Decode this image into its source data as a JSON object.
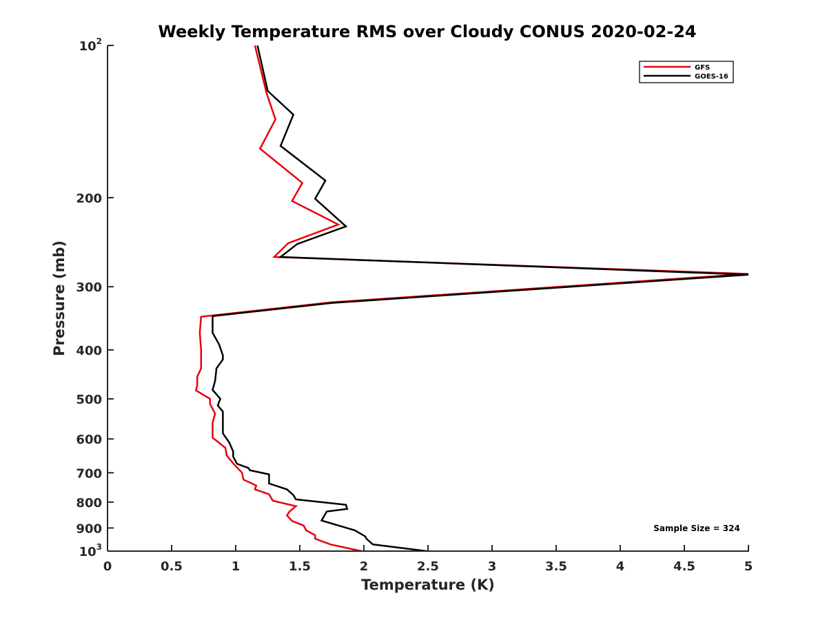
{
  "chart_data": {
    "type": "line",
    "title": "Weekly Temperature RMS over Cloudy CONUS 2020-02-24",
    "xlabel": "Temperature (K)",
    "ylabel": "Pressure (mb)",
    "xlim": [
      0,
      5
    ],
    "ylim": [
      1000,
      100
    ],
    "yscale": "log",
    "y_reversed": true,
    "grid": false,
    "legend_position": "top-right",
    "x_ticks": [
      0,
      0.5,
      1,
      1.5,
      2,
      2.5,
      3,
      3.5,
      4,
      4.5,
      5
    ],
    "x_tick_labels": [
      "0",
      "0.5",
      "1",
      "1.5",
      "2",
      "2.5",
      "3",
      "3.5",
      "4",
      "4.5",
      "5"
    ],
    "y_ticks": [
      100,
      200,
      300,
      400,
      500,
      600,
      700,
      800,
      900,
      1000
    ],
    "y_tick_labels": [
      {
        "base": "10",
        "exp": "2"
      },
      {
        "base": "200",
        "exp": ""
      },
      {
        "base": "300",
        "exp": ""
      },
      {
        "base": "400",
        "exp": ""
      },
      {
        "base": "500",
        "exp": ""
      },
      {
        "base": "600",
        "exp": ""
      },
      {
        "base": "700",
        "exp": ""
      },
      {
        "base": "800",
        "exp": ""
      },
      {
        "base": "900",
        "exp": ""
      },
      {
        "base": "10",
        "exp": "3"
      }
    ],
    "annotation": "Sample Size = 324",
    "series": [
      {
        "name": "GFS",
        "color": "#e8000b",
        "points": [
          [
            1.15,
            100
          ],
          [
            1.24,
            124
          ],
          [
            1.31,
            140
          ],
          [
            1.19,
            160
          ],
          [
            1.52,
            187
          ],
          [
            1.44,
            203
          ],
          [
            1.8,
            226
          ],
          [
            1.41,
            246
          ],
          [
            1.3,
            262
          ],
          [
            5.0,
            283
          ],
          [
            1.75,
            322
          ],
          [
            0.73,
            344
          ],
          [
            0.72,
            370
          ],
          [
            0.73,
            400
          ],
          [
            0.73,
            435
          ],
          [
            0.7,
            452
          ],
          [
            0.7,
            470
          ],
          [
            0.69,
            481
          ],
          [
            0.8,
            500
          ],
          [
            0.8,
            512
          ],
          [
            0.84,
            535
          ],
          [
            0.82,
            557
          ],
          [
            0.82,
            597
          ],
          [
            0.85,
            605
          ],
          [
            0.92,
            625
          ],
          [
            0.93,
            647
          ],
          [
            0.99,
            675
          ],
          [
            1.05,
            700
          ],
          [
            1.06,
            722
          ],
          [
            1.16,
            742
          ],
          [
            1.15,
            755
          ],
          [
            1.26,
            772
          ],
          [
            1.29,
            795
          ],
          [
            1.47,
            815
          ],
          [
            1.42,
            835
          ],
          [
            1.4,
            850
          ],
          [
            1.44,
            872
          ],
          [
            1.53,
            890
          ],
          [
            1.55,
            910
          ],
          [
            1.62,
            930
          ],
          [
            1.62,
            945
          ],
          [
            1.74,
            970
          ],
          [
            1.98,
            1000
          ]
        ]
      },
      {
        "name": "GOES-16",
        "color": "#000000",
        "points": [
          [
            1.17,
            100
          ],
          [
            1.25,
            123
          ],
          [
            1.45,
            137
          ],
          [
            1.35,
            158
          ],
          [
            1.7,
            185
          ],
          [
            1.62,
            201
          ],
          [
            1.86,
            228
          ],
          [
            1.48,
            247
          ],
          [
            1.35,
            262
          ],
          [
            5.0,
            284
          ],
          [
            1.75,
            323
          ],
          [
            0.82,
            343
          ],
          [
            0.82,
            370
          ],
          [
            0.87,
            390
          ],
          [
            0.9,
            410
          ],
          [
            0.9,
            418
          ],
          [
            0.85,
            435
          ],
          [
            0.84,
            460
          ],
          [
            0.82,
            480
          ],
          [
            0.88,
            500
          ],
          [
            0.86,
            515
          ],
          [
            0.9,
            530
          ],
          [
            0.9,
            560
          ],
          [
            0.9,
            585
          ],
          [
            0.95,
            610
          ],
          [
            0.98,
            635
          ],
          [
            0.98,
            650
          ],
          [
            1.01,
            672
          ],
          [
            1.1,
            685
          ],
          [
            1.11,
            692
          ],
          [
            1.26,
            705
          ],
          [
            1.26,
            735
          ],
          [
            1.4,
            755
          ],
          [
            1.45,
            775
          ],
          [
            1.47,
            790
          ],
          [
            1.86,
            810
          ],
          [
            1.87,
            825
          ],
          [
            1.71,
            835
          ],
          [
            1.67,
            870
          ],
          [
            1.93,
            910
          ],
          [
            2.01,
            935
          ],
          [
            2.02,
            945
          ],
          [
            2.07,
            970
          ],
          [
            2.49,
            1000
          ]
        ]
      }
    ]
  }
}
